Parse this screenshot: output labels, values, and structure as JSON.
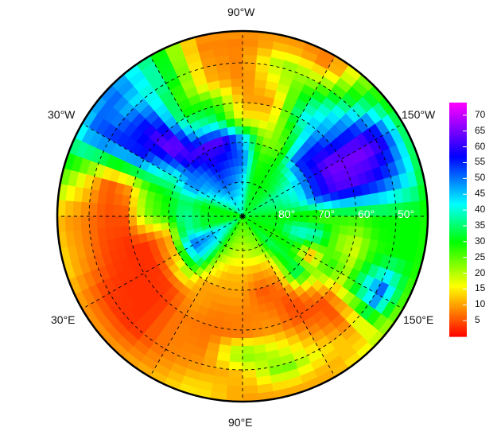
{
  "map": {
    "projection": "north-polar-stereographic",
    "lat_range": [
      42,
      90
    ],
    "longitude_labels": {
      "top": "90°W",
      "upper_left": "30°W",
      "upper_right": "150°W",
      "lower_left": "30°E",
      "lower_right": "150°E",
      "bottom": "90°E"
    },
    "latitude_labels": [
      "80°",
      "70°",
      "60°",
      "50°"
    ],
    "graticule_latitudes": [
      80,
      70,
      60,
      50
    ],
    "graticule_longitude_step": 30,
    "latitude_label_color": "#ffffff",
    "coastlines": true
  },
  "chart_data": {
    "type": "heatmap",
    "grid_lats": [
      90,
      79,
      74,
      69,
      64,
      59,
      54,
      49,
      44,
      42
    ],
    "grid_lons": [
      -180,
      -165,
      -150,
      -135,
      -120,
      -105,
      -90,
      -75,
      -60,
      -45,
      -30,
      -15,
      0,
      15,
      30,
      45,
      60,
      75,
      90,
      105,
      120,
      135,
      150,
      165
    ],
    "values_by_lon": [
      [
        32,
        30,
        28,
        25,
        28,
        28,
        30,
        30,
        30,
        28
      ],
      [
        32,
        35,
        40,
        55,
        62,
        62,
        58,
        50,
        40,
        28
      ],
      [
        32,
        38,
        42,
        55,
        65,
        65,
        66,
        60,
        40,
        30
      ],
      [
        32,
        32,
        35,
        55,
        55,
        48,
        45,
        35,
        28,
        25
      ],
      [
        33,
        30,
        30,
        25,
        30,
        40,
        32,
        18,
        5,
        10
      ],
      [
        35,
        30,
        28,
        22,
        15,
        10,
        17,
        22,
        10,
        10
      ],
      [
        38,
        45,
        52,
        45,
        15,
        10,
        8,
        8,
        8,
        10
      ],
      [
        36,
        50,
        55,
        62,
        35,
        28,
        12,
        10,
        8,
        10
      ],
      [
        38,
        52,
        58,
        62,
        42,
        30,
        30,
        36,
        35,
        33
      ],
      [
        35,
        48,
        50,
        60,
        68,
        62,
        55,
        45,
        52,
        48
      ],
      [
        32,
        42,
        50,
        40,
        45,
        55,
        55,
        55,
        50,
        40
      ],
      [
        30,
        30,
        35,
        30,
        25,
        10,
        5,
        15,
        25,
        28
      ],
      [
        30,
        32,
        38,
        28,
        22,
        5,
        5,
        8,
        10,
        12
      ],
      [
        30,
        32,
        38,
        10,
        3,
        3,
        4,
        8,
        12,
        15
      ],
      [
        32,
        48,
        52,
        12,
        3,
        3,
        3,
        4,
        8,
        10
      ],
      [
        32,
        42,
        42,
        22,
        4,
        3,
        3,
        3,
        8,
        10
      ],
      [
        30,
        25,
        18,
        10,
        10,
        8,
        8,
        8,
        10,
        12
      ],
      [
        28,
        20,
        12,
        10,
        8,
        7,
        8,
        10,
        15,
        15
      ],
      [
        28,
        18,
        12,
        10,
        8,
        8,
        25,
        12,
        10,
        10
      ],
      [
        28,
        20,
        10,
        5,
        8,
        10,
        18,
        25,
        12,
        10
      ],
      [
        28,
        22,
        12,
        8,
        4,
        5,
        10,
        15,
        10,
        12
      ],
      [
        30,
        35,
        32,
        38,
        12,
        5,
        5,
        10,
        15,
        20
      ],
      [
        30,
        28,
        30,
        8,
        30,
        22,
        40,
        55,
        30,
        22
      ],
      [
        30,
        32,
        42,
        40,
        22,
        18,
        28,
        30,
        30,
        28
      ]
    ],
    "colorbar": {
      "range": [
        0,
        74
      ],
      "ticks": [
        5,
        10,
        15,
        20,
        25,
        30,
        35,
        40,
        45,
        50,
        55,
        60,
        65,
        70
      ],
      "tick_labels": [
        "5",
        "10",
        "15",
        "20",
        "25",
        "30",
        "35",
        "40",
        "45",
        "50",
        "55",
        "60",
        "65",
        "70"
      ],
      "colormap": "rainbow red-yellow-green-cyan-blue-magenta"
    }
  }
}
